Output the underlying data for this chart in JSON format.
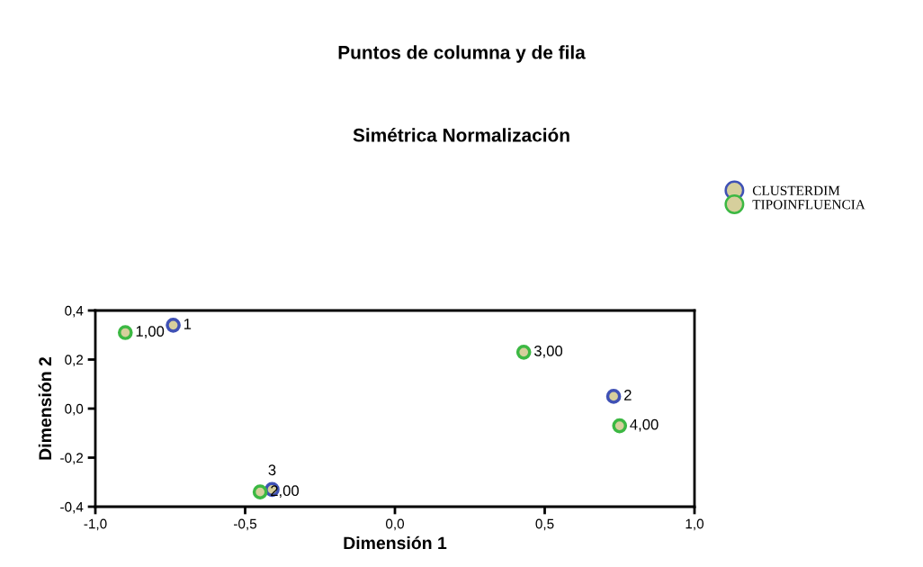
{
  "chart_data": {
    "type": "scatter",
    "title": "Puntos de columna y de fila",
    "subtitle": "Simétrica Normalización",
    "xlabel": "Dimensión 1",
    "ylabel": "Dimensión 2",
    "xlim": [
      -1.0,
      1.0
    ],
    "ylim": [
      -0.4,
      0.4
    ],
    "xticks": [
      {
        "value": -1.0,
        "label": "-1,0"
      },
      {
        "value": -0.5,
        "label": "-0,5"
      },
      {
        "value": 0.0,
        "label": "0,0"
      },
      {
        "value": 0.5,
        "label": "0,5"
      },
      {
        "value": 1.0,
        "label": "1,0"
      }
    ],
    "yticks": [
      {
        "value": -0.4,
        "label": "-0,4"
      },
      {
        "value": -0.2,
        "label": "-0,2"
      },
      {
        "value": 0.0,
        "label": "0,0"
      },
      {
        "value": 0.2,
        "label": "0,2"
      },
      {
        "value": 0.4,
        "label": "0,4"
      }
    ],
    "series": [
      {
        "name": "CLUSTERDIM",
        "color": "#3f51b5",
        "x": [
          -0.74,
          0.73,
          -0.41
        ],
        "values": [
          0.34,
          0.05,
          -0.33
        ]
      },
      {
        "name": "TIPOINFLUENCIA",
        "color": "#3cb843",
        "x": [
          -0.9,
          -0.45,
          0.43,
          0.75
        ],
        "values": [
          0.31,
          -0.34,
          0.23,
          -0.07
        ]
      }
    ],
    "annotations": [
      {
        "text": "1,00",
        "x": -0.9,
        "y": 0.31
      },
      {
        "text": "2,00",
        "x": -0.45,
        "y": -0.34
      },
      {
        "text": "3,00",
        "x": 0.43,
        "y": 0.23
      },
      {
        "text": "4,00",
        "x": 0.75,
        "y": -0.07
      },
      {
        "text": "1",
        "x": -0.74,
        "y": 0.34
      },
      {
        "text": "2",
        "x": 0.73,
        "y": 0.05
      },
      {
        "text": "3",
        "x": -0.41,
        "y": -0.33
      }
    ],
    "marker": "circle",
    "grid": false,
    "legend": "top right"
  }
}
